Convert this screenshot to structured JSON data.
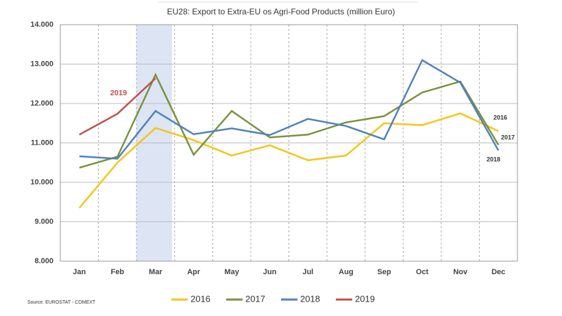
{
  "chart_data": {
    "type": "line",
    "title": "EU28: Export to Extra-EU os Agri-Food Products (million Euro)",
    "source": "Source: EUROSTAT - COMEXT",
    "categories": [
      "Jan",
      "Feb",
      "Mar",
      "Apr",
      "May",
      "Jun",
      "Jul",
      "Aug",
      "Sep",
      "Oct",
      "Nov",
      "Dec"
    ],
    "ylim": [
      8000,
      14000
    ],
    "yticks": [
      {
        "value": 8000,
        "label": "8.000"
      },
      {
        "value": 9000,
        "label": "9.000"
      },
      {
        "value": 10000,
        "label": "10.000"
      },
      {
        "value": 11000,
        "label": "11.000"
      },
      {
        "value": 12000,
        "label": "12.000"
      },
      {
        "value": 13000,
        "label": "13.000"
      },
      {
        "value": 14000,
        "label": "14.000"
      }
    ],
    "grid": true,
    "legend": "bottom",
    "series": [
      {
        "name": "2016",
        "color": "#f5c518",
        "values": [
          9350,
          10500,
          11380,
          11070,
          10680,
          10940,
          10560,
          10680,
          11500,
          11450,
          11750,
          11300
        ]
      },
      {
        "name": "2017",
        "color": "#77933c",
        "values": [
          10370,
          10650,
          12730,
          10700,
          11810,
          11140,
          11210,
          11520,
          11680,
          12280,
          12560,
          10950
        ]
      },
      {
        "name": "2018",
        "color": "#4f81bd",
        "values": [
          10660,
          10600,
          11810,
          11220,
          11370,
          11200,
          11610,
          11430,
          11090,
          13100,
          12530,
          10810
        ]
      },
      {
        "name": "2019",
        "color": "#c0504d",
        "values": [
          11210,
          11740,
          12640,
          null,
          null,
          null,
          null,
          null,
          null,
          null,
          null,
          null
        ]
      }
    ],
    "annotations": [
      "2019",
      "2016",
      "2017",
      "2018"
    ]
  }
}
